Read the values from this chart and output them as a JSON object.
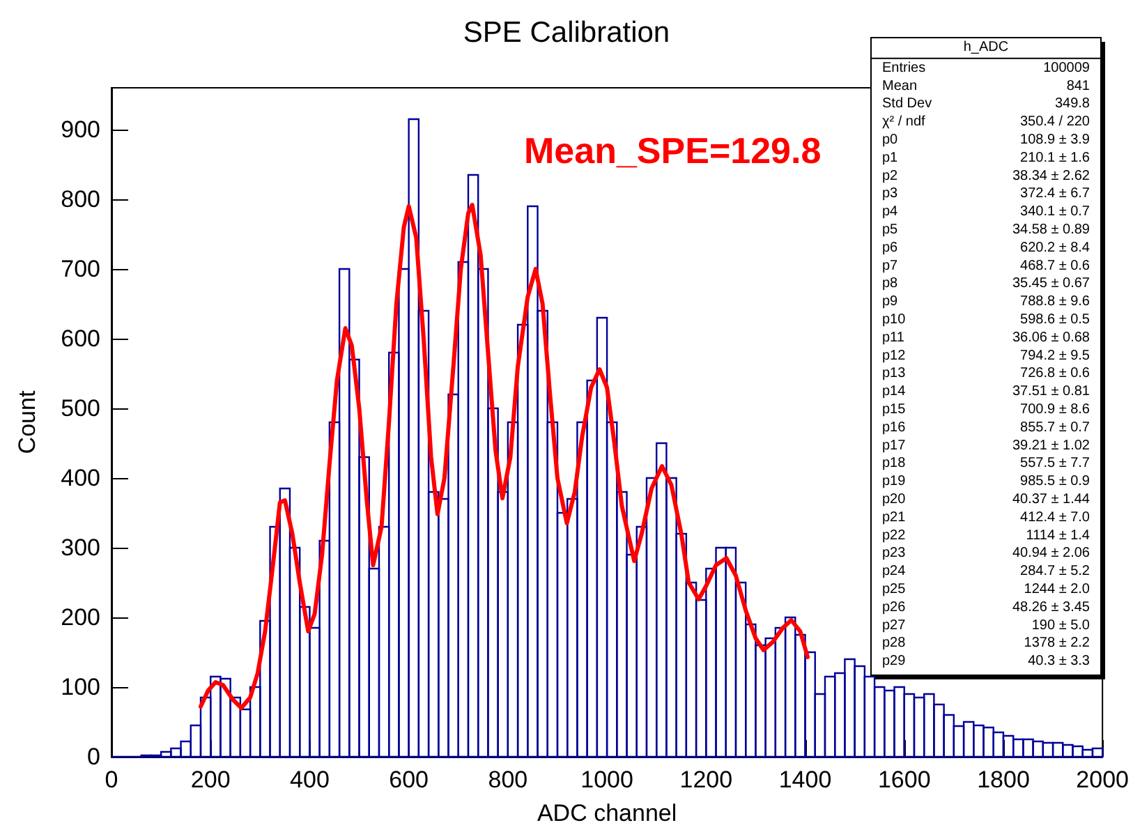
{
  "chart_data": {
    "type": "histogram",
    "title": "SPE Calibration",
    "xlabel": "ADC channel",
    "ylabel": "Count",
    "color": "#000099",
    "bins": [
      0,
      20,
      40,
      60,
      80,
      100,
      120,
      140,
      160,
      180,
      200,
      220,
      240,
      260,
      280,
      300,
      320,
      340,
      360,
      380,
      400,
      420,
      440,
      460,
      480,
      500,
      520,
      540,
      560,
      580,
      600,
      620,
      640,
      660,
      680,
      700,
      720,
      740,
      760,
      780,
      800,
      820,
      840,
      860,
      880,
      900,
      920,
      940,
      960,
      980,
      1000,
      1020,
      1040,
      1060,
      1080,
      1100,
      1120,
      1140,
      1160,
      1180,
      1200,
      1220,
      1240,
      1260,
      1280,
      1300,
      1320,
      1340,
      1360,
      1380,
      1400,
      1420,
      1440,
      1460,
      1480,
      1500,
      1520,
      1540,
      1560,
      1580,
      1600,
      1620,
      1640,
      1660,
      1680,
      1700,
      1720,
      1740,
      1760,
      1780,
      1800,
      1820,
      1840,
      1860,
      1880,
      1900,
      1920,
      1940,
      1960,
      1980,
      2000
    ],
    "values": [
      0,
      0,
      0,
      2,
      2,
      7,
      12,
      22,
      45,
      85,
      115,
      112,
      85,
      68,
      100,
      195,
      330,
      385,
      300,
      215,
      185,
      310,
      480,
      700,
      570,
      430,
      270,
      330,
      580,
      700,
      915,
      640,
      380,
      370,
      520,
      710,
      835,
      700,
      500,
      380,
      480,
      620,
      790,
      640,
      480,
      350,
      370,
      480,
      540,
      630,
      480,
      380,
      290,
      330,
      400,
      450,
      400,
      320,
      250,
      225,
      270,
      300,
      300,
      250,
      190,
      160,
      170,
      185,
      200,
      175,
      150,
      90,
      115,
      120,
      140,
      130,
      115,
      100,
      95,
      100,
      90,
      85,
      90,
      75,
      60,
      44,
      50,
      45,
      42,
      35,
      30,
      25,
      25,
      22,
      20,
      20,
      17,
      15,
      10,
      12
    ],
    "series": [
      {
        "type": "line",
        "color": "#ff0000",
        "x": [
          180,
          195,
          210,
          225,
          245,
          262,
          280,
          295,
          310,
          325,
          340,
          350,
          365,
          380,
          397,
          410,
          425,
          440,
          455,
          472,
          485,
          500,
          515,
          528,
          545,
          560,
          575,
          590,
          600,
          615,
          630,
          645,
          658,
          672,
          690,
          705,
          720,
          728,
          745,
          760,
          775,
          789,
          805,
          820,
          840,
          856,
          870,
          885,
          900,
          919,
          935,
          950,
          968,
          985,
          1000,
          1015,
          1030,
          1055,
          1070,
          1090,
          1111,
          1130,
          1150,
          1165,
          1185,
          1200,
          1220,
          1241,
          1260,
          1280,
          1300,
          1316,
          1335,
          1355,
          1372,
          1390,
          1405
        ],
        "values": [
          72,
          95,
          107,
          103,
          82,
          70,
          85,
          120,
          180,
          270,
          365,
          368,
          320,
          250,
          180,
          205,
          290,
          420,
          540,
          615,
          590,
          500,
          370,
          275,
          330,
          480,
          650,
          760,
          790,
          745,
          600,
          430,
          348,
          400,
          560,
          700,
          780,
          792,
          720,
          580,
          440,
          371,
          430,
          560,
          660,
          700,
          650,
          520,
          400,
          335,
          380,
          460,
          530,
          556,
          530,
          450,
          360,
          281,
          320,
          385,
          417,
          390,
          320,
          250,
          226,
          245,
          275,
          285,
          260,
          210,
          170,
          153,
          165,
          185,
          196,
          180,
          143
        ]
      }
    ],
    "xlim": [
      0,
      2000
    ],
    "xticks": [
      0,
      200,
      400,
      600,
      800,
      1000,
      1200,
      1400,
      1600,
      1800,
      2000
    ],
    "ylim": [
      0,
      960
    ],
    "yticks": [
      0,
      100,
      200,
      300,
      400,
      500,
      600,
      700,
      800,
      900
    ],
    "annotations": [
      "Mean_SPE=129.8",
      "h_ADC",
      "Entries",
      "100009",
      "Mean",
      "841",
      "Std Dev",
      "349.8",
      "χ² / ndf",
      "350.4 / 220",
      "p0",
      "108.9 ± 3.9",
      "p1",
      "210.1 ± 1.6",
      "p2",
      "38.34 ± 2.62",
      "p3",
      "372.4 ± 6.7",
      "p4",
      "340.1 ± 0.7",
      "p5",
      "34.58 ± 0.89",
      "p6",
      "620.2 ± 8.4",
      "p7",
      "468.7 ± 0.6",
      "p8",
      "35.45 ± 0.67",
      "p9",
      "788.8 ± 9.6",
      "p10",
      "598.6 ± 0.5",
      "p11",
      "36.06 ± 0.68",
      "p12",
      "794.2 ± 9.5",
      "p13",
      "726.8 ± 0.6",
      "p14",
      "37.51 ± 0.81",
      "p15",
      "700.9 ± 8.6",
      "p16",
      "855.7 ± 0.7",
      "p17",
      "39.21 ± 1.02",
      "p18",
      "557.5 ± 7.7",
      "p19",
      "985.5 ± 0.9",
      "p20",
      "40.37 ± 1.44",
      "p21",
      "412.4 ± 7.0",
      "p22",
      "1114 ± 1.4",
      "p23",
      "40.94 ± 2.06",
      "p24",
      "284.7 ± 5.2",
      "p25",
      "1244 ± 2.0",
      "p26",
      "48.26 ± 3.45",
      "p27",
      "190 ± 5.0",
      "p28",
      "1378 ± 2.2",
      "p29",
      "40.3 ± 3.3"
    ]
  }
}
